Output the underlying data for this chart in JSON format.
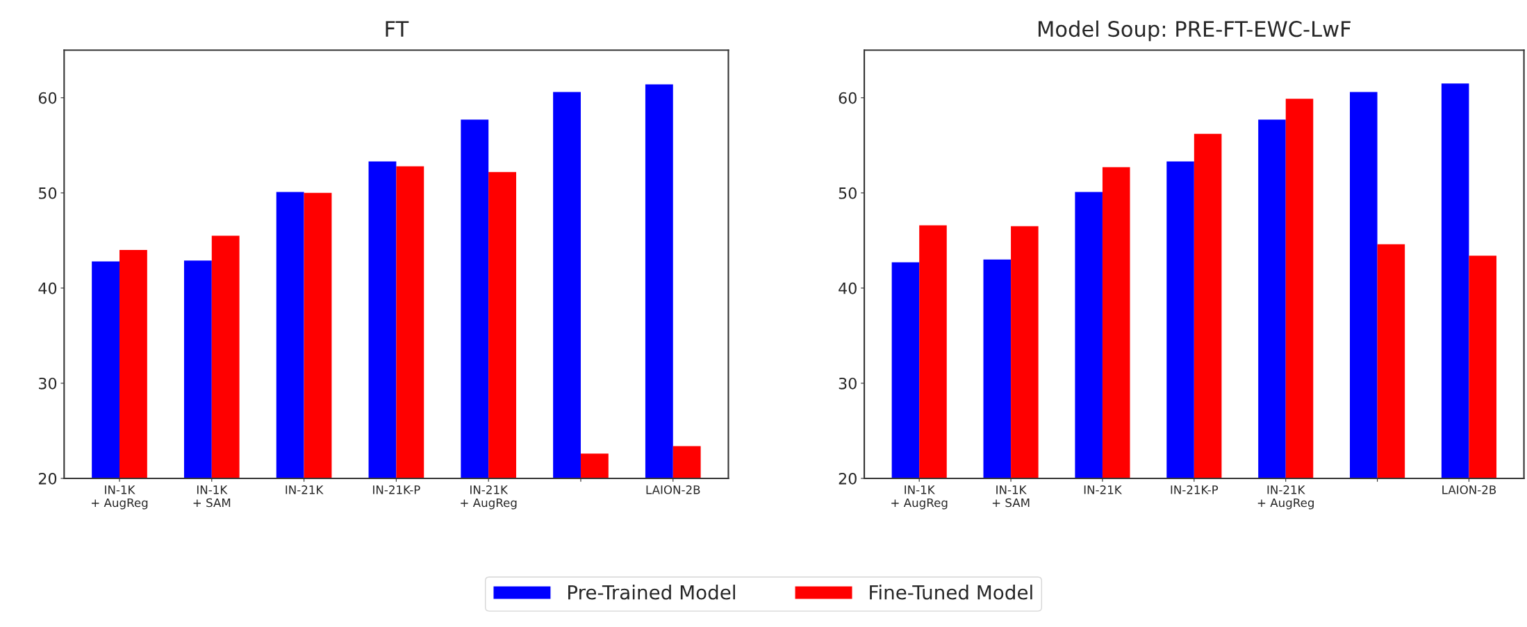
{
  "chart_data": [
    {
      "type": "bar",
      "title": "FT",
      "categories": [
        "IN-1K\n+ AugReg",
        "IN-1K\n+ SAM",
        "IN-21K",
        "IN-21K-P",
        "IN-21K\n+ AugReg",
        null,
        "LAION-2B"
      ],
      "series": [
        {
          "name": "Pre-Trained Model",
          "color": "#0000ff",
          "values": [
            42.8,
            42.9,
            50.1,
            53.3,
            57.7,
            60.6,
            61.4
          ]
        },
        {
          "name": "Fine-Tuned Model",
          "color": "#ff0000",
          "values": [
            44.0,
            45.5,
            50.0,
            52.8,
            52.2,
            22.6,
            23.4
          ]
        }
      ],
      "ylim": [
        20,
        65
      ],
      "yticks": [
        20,
        30,
        40,
        50,
        60
      ],
      "legend": "bottom"
    },
    {
      "type": "bar",
      "title": "Model Soup: PRE-FT-EWC-LwF",
      "categories": [
        "IN-1K\n+ AugReg",
        "IN-1K\n+ SAM",
        "IN-21K",
        "IN-21K-P",
        "IN-21K\n+ AugReg",
        null,
        "LAION-2B"
      ],
      "series": [
        {
          "color": "#0000ff",
          "values": [
            42.7,
            43.0,
            50.1,
            53.3,
            57.7,
            60.6,
            61.5
          ]
        },
        {
          "color": "#ff0000",
          "values": [
            46.6,
            46.5,
            52.7,
            56.2,
            59.9,
            44.6,
            43.4
          ]
        }
      ],
      "ylim": [
        20,
        65
      ],
      "yticks": [
        20,
        30,
        40,
        50,
        60
      ]
    }
  ]
}
